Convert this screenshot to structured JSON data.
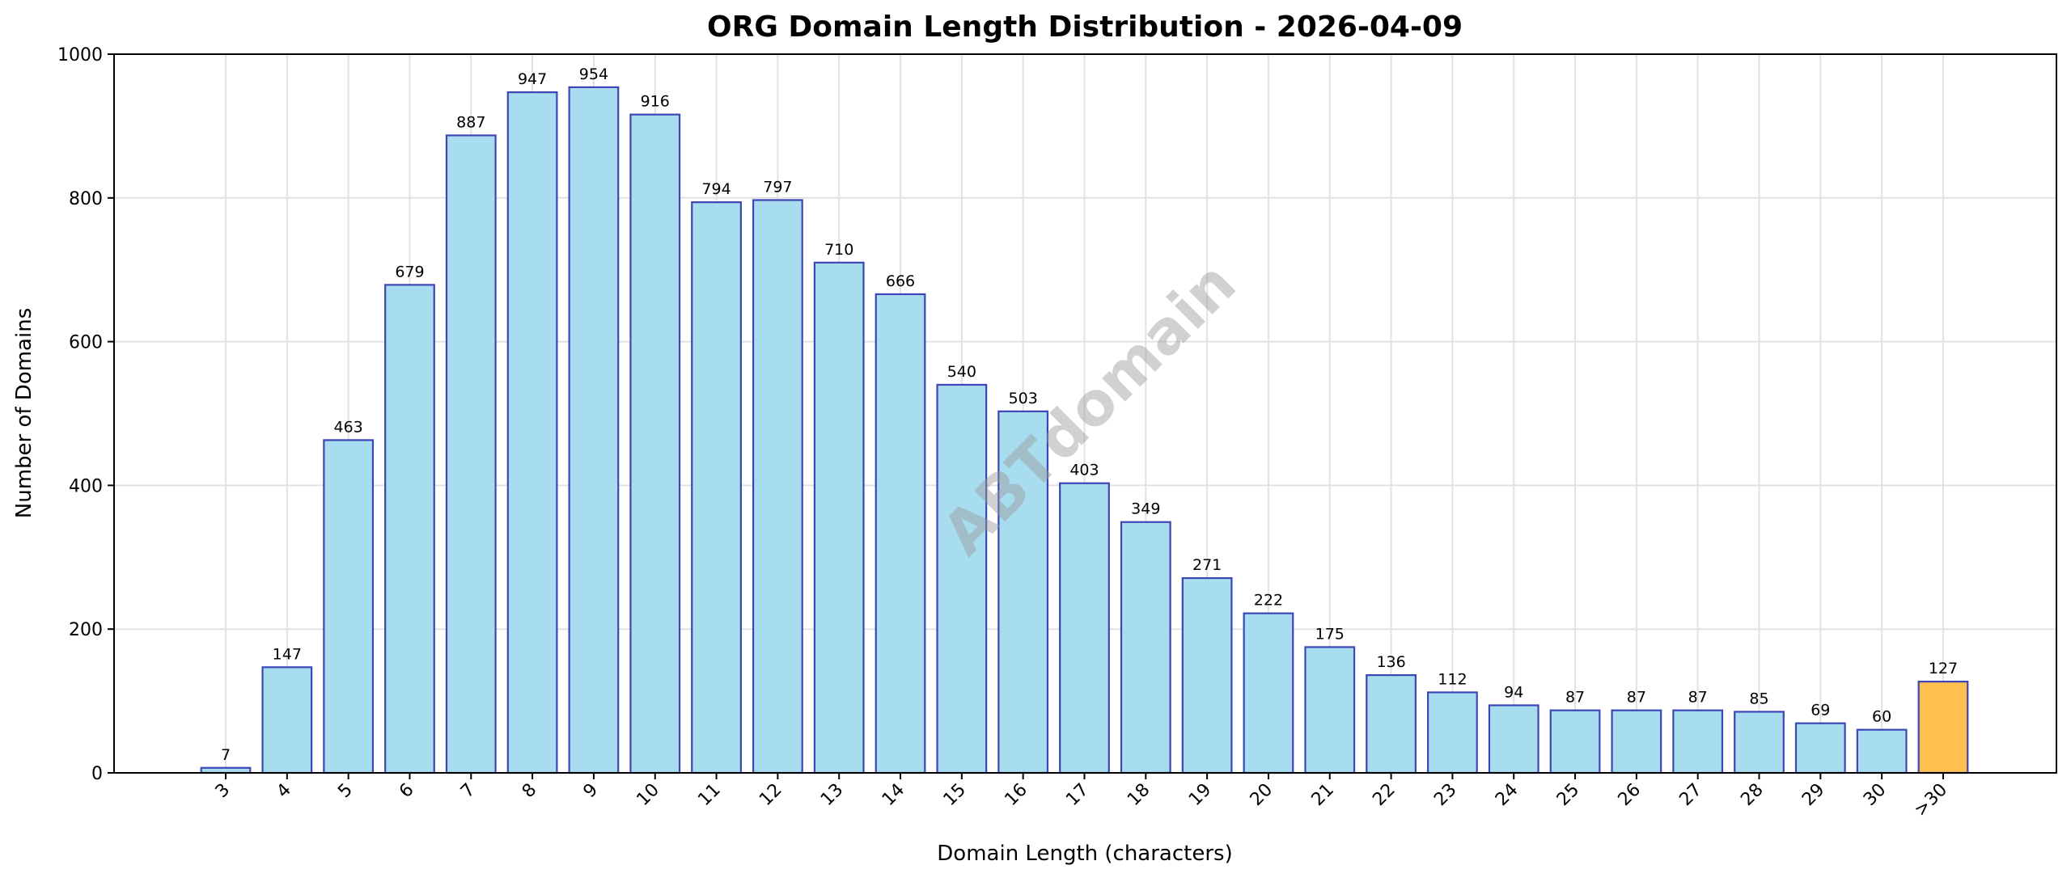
{
  "chart_data": {
    "type": "bar",
    "title": "ORG Domain Length Distribution - 2026-04-09",
    "xlabel": "Domain Length (characters)",
    "ylabel": "Number of Domains",
    "categories": [
      "3",
      "4",
      "5",
      "6",
      "7",
      "8",
      "9",
      "10",
      "11",
      "12",
      "13",
      "14",
      "15",
      "16",
      "17",
      "18",
      "19",
      "20",
      "21",
      "22",
      "23",
      "24",
      "25",
      "26",
      "27",
      "28",
      "29",
      "30",
      ">30"
    ],
    "values": [
      7,
      147,
      463,
      679,
      887,
      947,
      954,
      916,
      794,
      797,
      710,
      666,
      540,
      503,
      403,
      349,
      271,
      222,
      175,
      136,
      112,
      94,
      87,
      87,
      87,
      85,
      69,
      60,
      127
    ],
    "ylim": [
      0,
      1000
    ],
    "yticks": [
      0,
      200,
      400,
      600,
      800,
      1000
    ],
    "grid": true,
    "bar_color": "#a8dcef",
    "bar_edge_color": "#3c46b4",
    "highlight_category": ">30",
    "highlight_color": "#ffc04d",
    "watermark": "ABTdomain"
  }
}
